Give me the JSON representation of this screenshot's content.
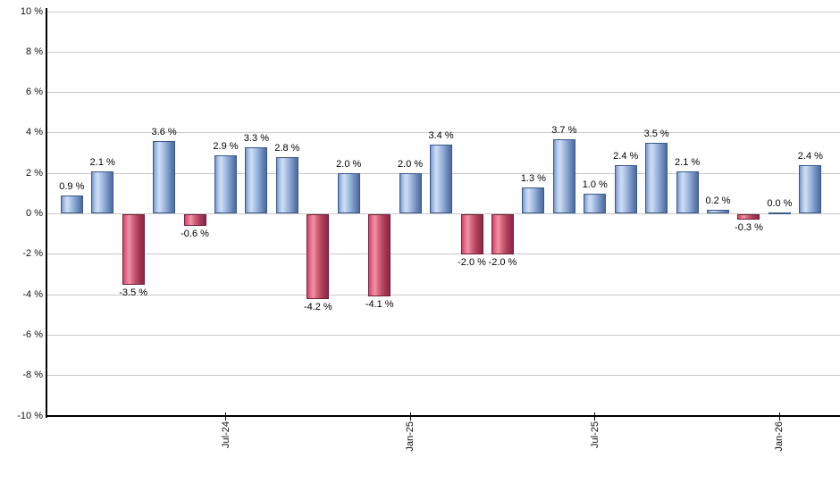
{
  "chart_data": {
    "type": "bar",
    "title": "",
    "xlabel": "",
    "ylabel": "",
    "unit": "%",
    "grid": true,
    "legend": null,
    "y_axis": {
      "min": -10,
      "max": 10,
      "step": 2,
      "labels": [
        "10 %",
        "8 %",
        "6 %",
        "4 %",
        "2 %",
        "0 %",
        "-2 %",
        "-4 %",
        "-6 %",
        "-8 %",
        "-10 %"
      ]
    },
    "x_axis": {
      "ticks": [
        {
          "label": "Jul-24",
          "bar_index": 5
        },
        {
          "label": "Jan-25",
          "bar_index": 11
        },
        {
          "label": "Jul-25",
          "bar_index": 17
        },
        {
          "label": "Jan-26",
          "bar_index": 23
        }
      ]
    },
    "bars": [
      {
        "value": 0.9,
        "label": "0.9 %"
      },
      {
        "value": 2.1,
        "label": "2.1 %"
      },
      {
        "value": -3.5,
        "label": "-3.5 %"
      },
      {
        "value": 3.6,
        "label": "3.6 %"
      },
      {
        "value": -0.6,
        "label": "-0.6 %"
      },
      {
        "value": 2.9,
        "label": "2.9 %"
      },
      {
        "value": 3.3,
        "label": "3.3 %"
      },
      {
        "value": 2.8,
        "label": "2.8 %"
      },
      {
        "value": -4.2,
        "label": "-4.2 %"
      },
      {
        "value": 2.0,
        "label": "2.0 %"
      },
      {
        "value": -4.1,
        "label": "-4.1 %"
      },
      {
        "value": 2.0,
        "label": "2.0 %"
      },
      {
        "value": 3.4,
        "label": "3.4 %"
      },
      {
        "value": -2.0,
        "label": "-2.0 %"
      },
      {
        "value": -2.0,
        "label": "-2.0 %"
      },
      {
        "value": 1.3,
        "label": "1.3 %"
      },
      {
        "value": 3.7,
        "label": "3.7 %"
      },
      {
        "value": 1.0,
        "label": "1.0 %"
      },
      {
        "value": 2.4,
        "label": "2.4 %"
      },
      {
        "value": 3.5,
        "label": "3.5 %"
      },
      {
        "value": 2.1,
        "label": "2.1 %"
      },
      {
        "value": 0.2,
        "label": "0.2 %"
      },
      {
        "value": -0.3,
        "label": "-0.3 %"
      },
      {
        "value": 0.0,
        "label": "0.0 %"
      },
      {
        "value": 2.4,
        "label": "2.4 %"
      }
    ],
    "colors": {
      "positive_bar": "#7b99c9",
      "positive_highlight": "#cfdef5",
      "positive_dark": "#4e6b9b",
      "negative_bar": "#d94868",
      "negative_highlight": "#ec93a7",
      "negative_dark": "#8b2846",
      "gridline": "#c9c9c9",
      "axis": "#000000",
      "text": "#111111"
    }
  }
}
